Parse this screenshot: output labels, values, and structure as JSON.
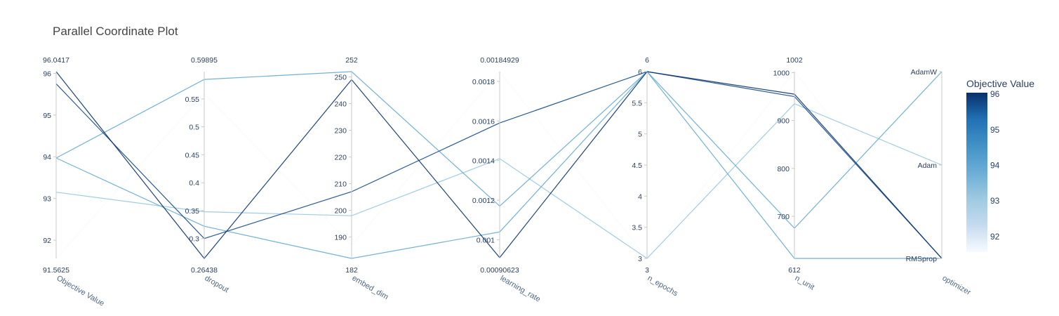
{
  "chart_data": {
    "type": "parallel_coordinates",
    "title": "Parallel Coordinate Plot",
    "colorscale": [
      "#f7fbff",
      "#c6dbef",
      "#9ecae1",
      "#6baed6",
      "#4292c6",
      "#2171b5",
      "#08306b"
    ],
    "colorbar": {
      "title": "Objective Value",
      "range": [
        91.5625,
        96.0417
      ],
      "ticks": [
        92,
        93,
        94,
        95,
        96
      ]
    },
    "dimensions": [
      {
        "label": "Objective Value",
        "type": "numeric",
        "range": [
          91.5625,
          96.0417
        ],
        "range_labels": [
          "91.5625",
          "96.0417"
        ],
        "ticks": [
          92,
          93,
          94,
          95,
          96
        ],
        "tick_labels": [
          "92",
          "93",
          "94",
          "95",
          "96"
        ]
      },
      {
        "label": "dropout",
        "type": "numeric",
        "range": [
          0.26438,
          0.59895
        ],
        "range_labels": [
          "0.26438",
          "0.59895"
        ],
        "ticks": [
          0.3,
          0.35,
          0.4,
          0.45,
          0.5,
          0.55
        ],
        "tick_labels": [
          "0.3",
          "0.35",
          "0.4",
          "0.45",
          "0.5",
          "0.55"
        ]
      },
      {
        "label": "embed_dim",
        "type": "numeric",
        "range": [
          182,
          252
        ],
        "range_labels": [
          "182",
          "252"
        ],
        "ticks": [
          190,
          200,
          210,
          220,
          230,
          240,
          250
        ],
        "tick_labels": [
          "190",
          "200",
          "210",
          "220",
          "230",
          "240",
          "250"
        ]
      },
      {
        "label": "learning_rate",
        "type": "numeric",
        "range": [
          0.00090623,
          0.00184929
        ],
        "range_labels": [
          "0.00090623",
          "0.00184929"
        ],
        "ticks": [
          0.001,
          0.0012,
          0.0014,
          0.0016,
          0.0018
        ],
        "tick_labels": [
          "0.001",
          "0.0012",
          "0.0014",
          "0.0016",
          "0.0018"
        ]
      },
      {
        "label": "n_epochs",
        "type": "numeric",
        "range": [
          3,
          6
        ],
        "range_labels": [
          "3",
          "6"
        ],
        "ticks": [
          3,
          3.5,
          4,
          4.5,
          5,
          5.5,
          6
        ],
        "tick_labels": [
          "3",
          "3.5",
          "4",
          "4.5",
          "5",
          "5.5",
          "6"
        ]
      },
      {
        "label": "n_unit",
        "type": "numeric",
        "range": [
          612,
          1002
        ],
        "range_labels": [
          "612",
          "1002"
        ],
        "ticks": [
          700,
          800,
          900,
          1000
        ],
        "tick_labels": [
          "700",
          "800",
          "900",
          "1000"
        ]
      },
      {
        "label": "optimizer",
        "type": "categorical",
        "categories": [
          "RMSprop",
          "Adam",
          "AdamW"
        ]
      }
    ],
    "trials": [
      {
        "values": [
          91.5625,
          0.56,
          187,
          0.00185,
          3,
          1002,
          "RMSprop"
        ]
      },
      {
        "values": [
          93.15,
          0.348,
          198,
          0.00141,
          3,
          935,
          "Adam"
        ]
      },
      {
        "values": [
          93.97,
          0.322,
          182,
          0.00104,
          6,
          612,
          "RMSprop"
        ]
      },
      {
        "values": [
          93.97,
          0.585,
          252,
          0.00117,
          6,
          675,
          "AdamW"
        ]
      },
      {
        "values": [
          95.75,
          0.3,
          207,
          0.00159,
          6,
          950,
          "RMSprop"
        ]
      },
      {
        "values": [
          96.0417,
          0.2644,
          249,
          0.00091,
          6,
          955,
          "RMSprop"
        ]
      }
    ]
  }
}
